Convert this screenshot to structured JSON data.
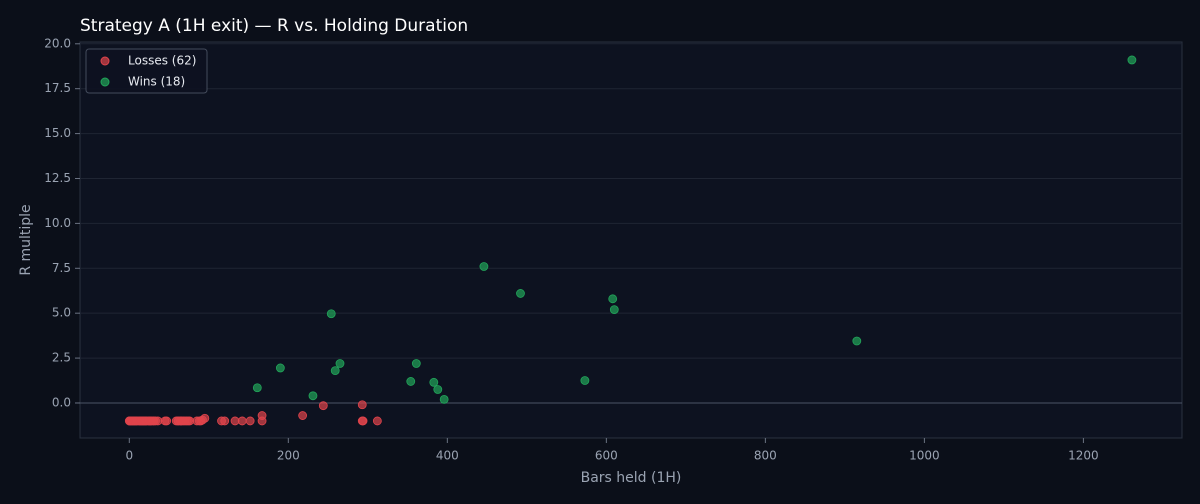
{
  "chart_data": {
    "type": "scatter",
    "title": "Strategy A (1H exit) — R vs. Holding Duration",
    "x_label": "Bars held (1H)",
    "y_label": "R multiple",
    "xlim": [
      -62,
      1324
    ],
    "ylim": [
      -1.95,
      20.1
    ],
    "xticks": [
      0,
      200,
      400,
      600,
      800,
      1000,
      1200
    ],
    "yticks": [
      {
        "value": 0,
        "label": "0.0"
      },
      {
        "value": 2.5,
        "label": "2.5"
      },
      {
        "value": 5,
        "label": "5.0"
      },
      {
        "value": 7.5,
        "label": "7.5"
      },
      {
        "value": 10,
        "label": "10.0"
      },
      {
        "value": 12.5,
        "label": "12.5"
      },
      {
        "value": 15,
        "label": "15.0"
      },
      {
        "value": 17.5,
        "label": "17.5"
      },
      {
        "value": 20,
        "label": "20.0"
      }
    ],
    "grid": true,
    "legend": "upper-left",
    "series": [
      {
        "name": "Losses (62)",
        "color": "#e0444c",
        "x": [
          0,
          1,
          2,
          3,
          4,
          5,
          6,
          7,
          8,
          9,
          10,
          12,
          13,
          14,
          15,
          16,
          17,
          18,
          19,
          20,
          21,
          22,
          24,
          25,
          26,
          27,
          28,
          30,
          31,
          33,
          36,
          45,
          47,
          59,
          61,
          62,
          64,
          65,
          66,
          68,
          70,
          72,
          74,
          76,
          85,
          88,
          90,
          92,
          95,
          116,
          120,
          133,
          142,
          152,
          167,
          167,
          218,
          244,
          293,
          294,
          293,
          312
        ],
        "values": [
          -1,
          -1,
          -1,
          -1,
          -1,
          -1,
          -1,
          -1,
          -1,
          -1,
          -1,
          -1,
          -1,
          -1,
          -1,
          -1,
          -1,
          -1,
          -1,
          -1,
          -1,
          -1,
          -1,
          -1,
          -1,
          -1,
          -1,
          -1,
          -1,
          -1,
          -1,
          -1,
          -1,
          -1,
          -1,
          -1,
          -1,
          -1,
          -1,
          -1,
          -1,
          -1,
          -1,
          -1,
          -1,
          -1,
          -1,
          -0.95,
          -0.85,
          -1,
          -1,
          -1,
          -1,
          -1,
          -1,
          -0.7,
          -0.7,
          -0.15,
          -1,
          -1,
          -0.1,
          -1
        ]
      },
      {
        "name": "Wins (18)",
        "color": "#22a55a",
        "x": [
          161,
          190,
          231,
          254,
          259,
          265,
          354,
          361,
          383,
          388,
          396,
          446,
          492,
          573,
          608,
          610,
          915,
          1261
        ],
        "values": [
          0.85,
          1.95,
          0.4,
          4.97,
          1.8,
          2.2,
          1.2,
          2.2,
          1.15,
          0.75,
          0.2,
          7.6,
          6.1,
          1.25,
          5.8,
          5.2,
          3.45,
          19.1
        ]
      }
    ]
  }
}
